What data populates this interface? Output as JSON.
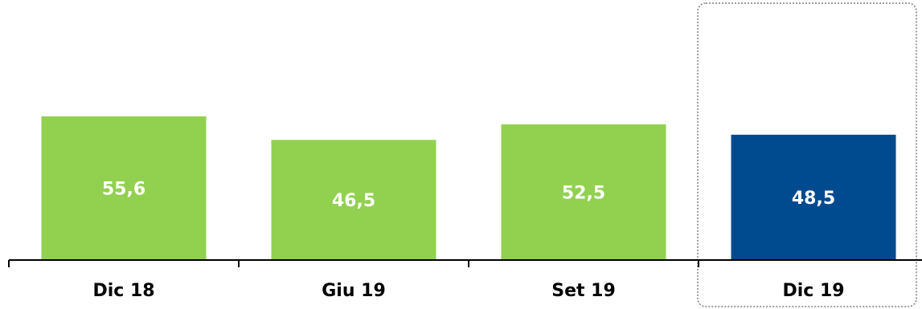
{
  "chart_data": {
    "type": "bar",
    "categories": [
      "Dic 18",
      "Giu 19",
      "Set 19",
      "Dic 19"
    ],
    "values": [
      55.6,
      46.5,
      52.5,
      48.5
    ],
    "value_labels": [
      "55,6",
      "46,5",
      "52,5",
      "48,5"
    ],
    "title": "",
    "xlabel": "",
    "ylabel": "",
    "ylim": [
      0,
      100
    ],
    "grid": false,
    "highlighted_category": "Dic 19",
    "colors": {
      "bar": "#92d050",
      "highlight": "#004a8f",
      "value_text": "#ffffff",
      "axis": "#000000",
      "highlight_box": "#7f7f7f"
    }
  }
}
